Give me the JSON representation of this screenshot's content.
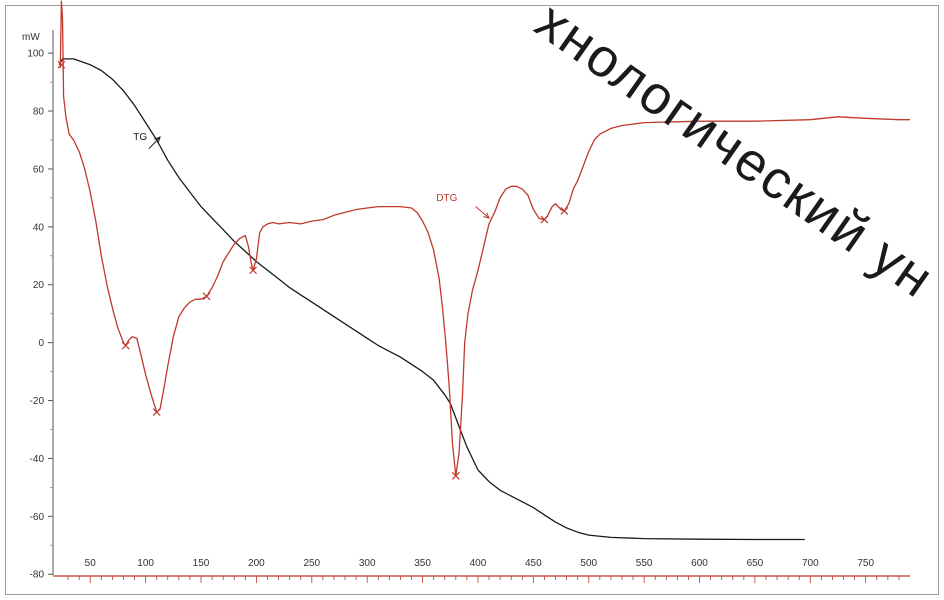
{
  "chart_data": {
    "type": "line",
    "y_unit": "mW",
    "xlim": [
      20,
      790
    ],
    "ylim": [
      -82,
      108
    ],
    "x_ticks": [
      50,
      100,
      150,
      200,
      250,
      300,
      350,
      400,
      450,
      500,
      550,
      600,
      650,
      700,
      750
    ],
    "y_ticks": [
      100,
      80,
      60,
      40,
      20,
      0,
      -20,
      -40,
      -60,
      -80
    ],
    "grid": false,
    "series": [
      {
        "name": "TG",
        "color": "#1a1a1a",
        "points": [
          [
            22,
            96
          ],
          [
            25,
            98
          ],
          [
            35,
            98
          ],
          [
            50,
            96
          ],
          [
            60,
            94
          ],
          [
            70,
            91
          ],
          [
            80,
            87
          ],
          [
            90,
            82
          ],
          [
            100,
            76
          ],
          [
            110,
            70
          ],
          [
            120,
            63
          ],
          [
            130,
            57
          ],
          [
            140,
            52
          ],
          [
            150,
            47
          ],
          [
            160,
            43
          ],
          [
            170,
            39
          ],
          [
            180,
            35
          ],
          [
            190,
            31.5
          ],
          [
            200,
            28
          ],
          [
            210,
            25
          ],
          [
            220,
            22
          ],
          [
            230,
            19
          ],
          [
            240,
            16.5
          ],
          [
            250,
            14
          ],
          [
            260,
            11.5
          ],
          [
            270,
            9
          ],
          [
            280,
            6.5
          ],
          [
            290,
            4
          ],
          [
            300,
            1.5
          ],
          [
            310,
            -1
          ],
          [
            320,
            -3
          ],
          [
            330,
            -5
          ],
          [
            340,
            -7.5
          ],
          [
            350,
            -10
          ],
          [
            360,
            -13
          ],
          [
            370,
            -18
          ],
          [
            375,
            -21
          ],
          [
            380,
            -26
          ],
          [
            385,
            -31
          ],
          [
            390,
            -36
          ],
          [
            395,
            -40
          ],
          [
            400,
            -44
          ],
          [
            410,
            -48
          ],
          [
            420,
            -51
          ],
          [
            430,
            -53
          ],
          [
            440,
            -55
          ],
          [
            450,
            -57
          ],
          [
            460,
            -59.5
          ],
          [
            470,
            -62
          ],
          [
            480,
            -64
          ],
          [
            490,
            -65.5
          ],
          [
            500,
            -66.5
          ],
          [
            520,
            -67.3
          ],
          [
            550,
            -67.7
          ],
          [
            600,
            -67.9
          ],
          [
            650,
            -68
          ],
          [
            695,
            -68
          ]
        ]
      },
      {
        "name": "DTG",
        "color": "#c0392b",
        "points": [
          [
            23,
            95
          ],
          [
            24,
            118
          ],
          [
            25,
            112
          ],
          [
            26,
            85
          ],
          [
            28,
            78
          ],
          [
            31,
            72
          ],
          [
            35,
            70
          ],
          [
            40,
            66
          ],
          [
            45,
            60
          ],
          [
            50,
            52
          ],
          [
            55,
            42
          ],
          [
            60,
            30
          ],
          [
            65,
            20
          ],
          [
            70,
            12
          ],
          [
            75,
            5
          ],
          [
            80,
            0
          ],
          [
            82,
            -1
          ],
          [
            85,
            1
          ],
          [
            88,
            2
          ],
          [
            92,
            1.5
          ],
          [
            95,
            -3
          ],
          [
            100,
            -11
          ],
          [
            105,
            -18
          ],
          [
            110,
            -24
          ],
          [
            113,
            -23
          ],
          [
            116,
            -17
          ],
          [
            120,
            -8
          ],
          [
            125,
            2
          ],
          [
            130,
            9
          ],
          [
            135,
            12
          ],
          [
            140,
            14
          ],
          [
            145,
            15
          ],
          [
            150,
            15
          ],
          [
            155,
            16
          ],
          [
            160,
            19
          ],
          [
            165,
            23
          ],
          [
            170,
            28
          ],
          [
            175,
            31
          ],
          [
            180,
            34
          ],
          [
            185,
            36
          ],
          [
            190,
            37
          ],
          [
            193,
            33
          ],
          [
            195,
            28
          ],
          [
            197,
            25
          ],
          [
            200,
            29
          ],
          [
            203,
            38
          ],
          [
            206,
            40
          ],
          [
            210,
            41
          ],
          [
            215,
            41.5
          ],
          [
            220,
            41
          ],
          [
            230,
            41.5
          ],
          [
            240,
            41
          ],
          [
            250,
            42
          ],
          [
            260,
            42.5
          ],
          [
            270,
            44
          ],
          [
            280,
            45
          ],
          [
            290,
            46
          ],
          [
            300,
            46.5
          ],
          [
            310,
            47
          ],
          [
            320,
            47
          ],
          [
            330,
            47
          ],
          [
            340,
            46.5
          ],
          [
            345,
            45
          ],
          [
            350,
            42
          ],
          [
            355,
            38
          ],
          [
            360,
            32
          ],
          [
            365,
            22
          ],
          [
            368,
            12
          ],
          [
            371,
            0
          ],
          [
            374,
            -15
          ],
          [
            377,
            -35
          ],
          [
            380,
            -46
          ],
          [
            383,
            -38
          ],
          [
            386,
            -18
          ],
          [
            388,
            0
          ],
          [
            391,
            10
          ],
          [
            395,
            18
          ],
          [
            400,
            25
          ],
          [
            405,
            33
          ],
          [
            410,
            41
          ],
          [
            415,
            45
          ],
          [
            420,
            50
          ],
          [
            425,
            53
          ],
          [
            430,
            54
          ],
          [
            435,
            54
          ],
          [
            440,
            53
          ],
          [
            445,
            51
          ],
          [
            450,
            46
          ],
          [
            455,
            43
          ],
          [
            460,
            42.5
          ],
          [
            463,
            44
          ],
          [
            467,
            47
          ],
          [
            470,
            48
          ],
          [
            475,
            46
          ],
          [
            478,
            45.5
          ],
          [
            482,
            48
          ],
          [
            486,
            53
          ],
          [
            490,
            56
          ],
          [
            495,
            61
          ],
          [
            500,
            66
          ],
          [
            505,
            70
          ],
          [
            510,
            72
          ],
          [
            520,
            74
          ],
          [
            530,
            75
          ],
          [
            540,
            75.5
          ],
          [
            550,
            76
          ],
          [
            600,
            76.5
          ],
          [
            650,
            76.5
          ],
          [
            700,
            77
          ],
          [
            725,
            78
          ],
          [
            750,
            77.5
          ],
          [
            780,
            77
          ],
          [
            790,
            77
          ]
        ]
      }
    ],
    "markers": [
      [
        82,
        -1
      ],
      [
        110,
        -24
      ],
      [
        155,
        16
      ],
      [
        197,
        25
      ],
      [
        380,
        -46
      ],
      [
        460,
        42.5
      ],
      [
        478,
        45.5
      ],
      [
        24,
        96
      ]
    ],
    "annotations": [
      {
        "text": "TG",
        "x": 105,
        "y": 70,
        "arrow_to": [
          113,
          71
        ],
        "arrow_from": [
          103,
          67
        ],
        "series": "TG"
      },
      {
        "text": "DTG",
        "x": 385,
        "y": 49,
        "arrow_to": [
          410,
          43
        ],
        "arrow_from": [
          398,
          47
        ],
        "series": "DTG"
      }
    ]
  },
  "watermark": {
    "text": "хнологический ун",
    "color": "#1a1a1a"
  }
}
